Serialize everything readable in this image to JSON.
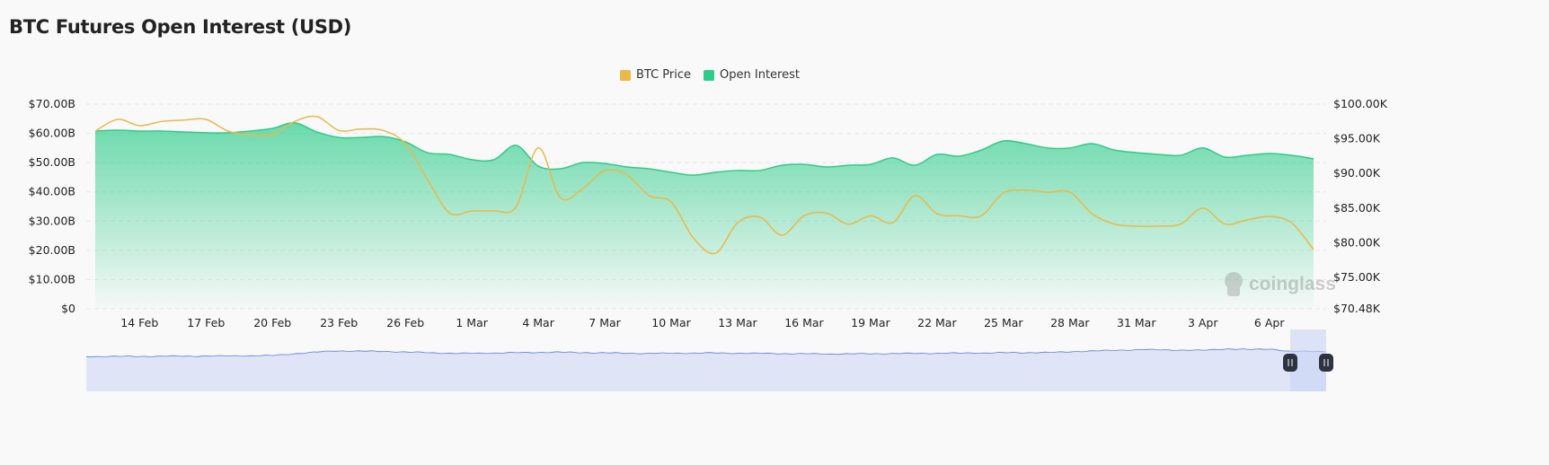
{
  "title": "BTC Futures Open Interest (USD)",
  "watermark": "coinglass",
  "colors": {
    "price": "#e9b949",
    "oi": "#2ecc8a",
    "navigator": "#5b7be0"
  },
  "chart_data": {
    "type": "area",
    "title": "BTC Futures Open Interest (USD)",
    "legend": [
      {
        "name": "BTC Price",
        "color": "#e9b949"
      },
      {
        "name": "Open Interest",
        "color": "#2ecc8a"
      }
    ],
    "legend_position": "top-center",
    "x_start": "12 Feb",
    "x_ticks": [
      "14 Feb",
      "17 Feb",
      "20 Feb",
      "23 Feb",
      "26 Feb",
      "1 Mar",
      "4 Mar",
      "7 Mar",
      "10 Mar",
      "13 Mar",
      "16 Mar",
      "19 Mar",
      "22 Mar",
      "25 Mar",
      "28 Mar",
      "31 Mar",
      "3 Apr",
      "6 Apr"
    ],
    "x_tick_day_index": [
      2,
      5,
      8,
      11,
      14,
      17,
      20,
      23,
      26,
      29,
      32,
      35,
      38,
      41,
      44,
      47,
      50,
      53
    ],
    "y_left": {
      "label": "Open Interest",
      "ticks": [
        "$0",
        "$10.00B",
        "$20.00B",
        "$30.00B",
        "$40.00B",
        "$50.00B",
        "$60.00B",
        "$70.00B"
      ],
      "range": [
        0,
        70
      ]
    },
    "y_right": {
      "label": "BTC Price",
      "ticks": [
        "$70.48K",
        "$75.00K",
        "$80.00K",
        "$85.00K",
        "$90.00K",
        "$95.00K",
        "$100.00K"
      ],
      "tick_values": [
        70.48,
        75,
        80,
        85,
        90,
        95,
        100
      ],
      "range": [
        70.48,
        100
      ]
    },
    "grid": true,
    "series": [
      {
        "name": "Open Interest",
        "unit": "USD B",
        "values": [
          60.8,
          61.1,
          60.8,
          60.8,
          60.5,
          60.2,
          60.2,
          60.8,
          61.7,
          63.6,
          60.5,
          58.6,
          58.6,
          58.9,
          57.1,
          53.4,
          52.8,
          51.0,
          51.0,
          55.9,
          48.8,
          47.9,
          50.0,
          49.7,
          48.5,
          47.9,
          46.7,
          45.7,
          46.7,
          47.3,
          47.3,
          49.1,
          49.4,
          48.5,
          49.1,
          49.4,
          51.6,
          49.1,
          52.8,
          52.2,
          54.3,
          57.4,
          56.5,
          55.0,
          55.0,
          56.5,
          54.3,
          53.4,
          52.8,
          52.5,
          55.0,
          51.9,
          52.5,
          53.1,
          52.5,
          51.3
        ]
      },
      {
        "name": "BTC Price",
        "unit": "USD K",
        "values": [
          96.1,
          97.8,
          96.9,
          97.5,
          97.7,
          97.8,
          96.1,
          95.6,
          95.6,
          97.5,
          98.2,
          96.2,
          96.4,
          96.2,
          94.3,
          89.1,
          84.3,
          84.6,
          84.6,
          85.2,
          93.7,
          86.5,
          87.8,
          90.4,
          89.8,
          86.8,
          85.9,
          80.7,
          78.5,
          82.9,
          83.7,
          81.1,
          83.9,
          84.3,
          82.7,
          83.9,
          82.9,
          86.8,
          84.2,
          83.9,
          83.9,
          87.2,
          87.6,
          87.3,
          87.3,
          84.2,
          82.7,
          82.4,
          82.4,
          82.7,
          85.0,
          82.7,
          83.3,
          83.8,
          82.9,
          79.0
        ]
      }
    ]
  }
}
